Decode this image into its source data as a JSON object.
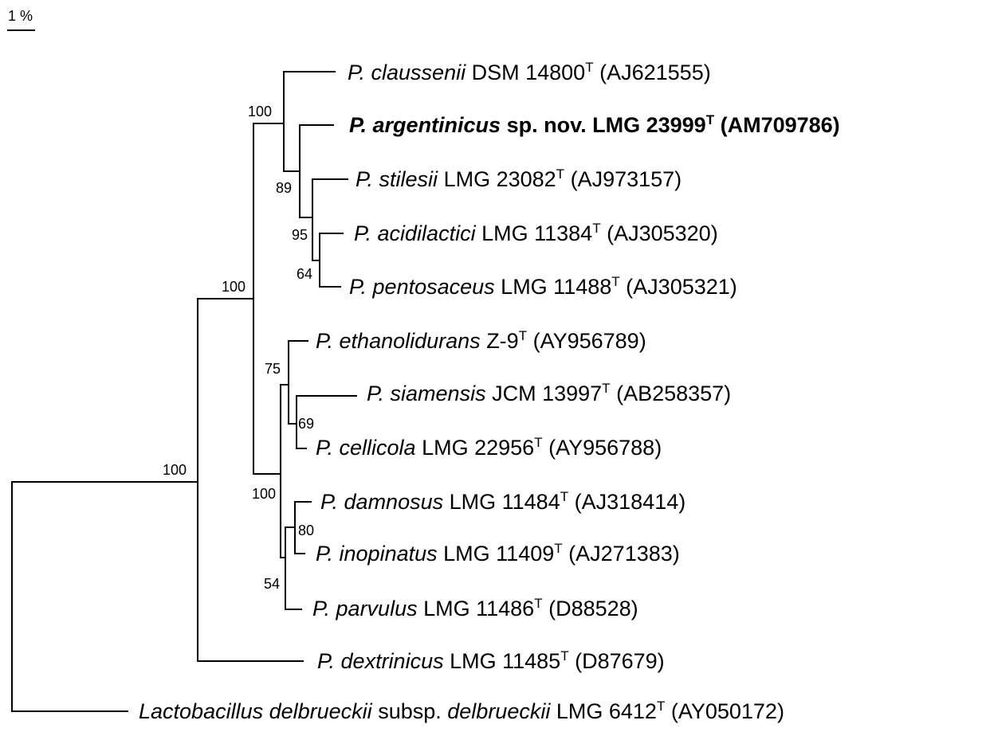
{
  "scale": {
    "label": "1 %"
  },
  "bootstrap": {
    "claussenii_clade": "100",
    "argentinicus_clade": "89",
    "acidilactici_clade": "95",
    "pentosaceus_pair": "64",
    "pediococcus_core": "100",
    "pediococcus_all": "100",
    "ethanolidurans_clade": "75",
    "siamensis_pair": "69",
    "lower_clade": "100",
    "damnosus_pair": "80",
    "parvulus_clade": "54"
  },
  "taxa": [
    {
      "id": "claussenii",
      "name": "P. claussenii",
      "strain": "DSM 14800",
      "type": "T",
      "accession": "(AJ621555)",
      "bold": false
    },
    {
      "id": "argentinicus",
      "name": "P. argentinicus",
      "strain": "sp. nov. LMG 23999",
      "type": "T",
      "accession": "(AM709786)",
      "bold": true
    },
    {
      "id": "stilesii",
      "name": "P. stilesii",
      "strain": "LMG 23082",
      "type": "T",
      "accession": "(AJ973157)",
      "bold": false
    },
    {
      "id": "acidilactici",
      "name": "P. acidilactici",
      "strain": "LMG 11384",
      "type": "T",
      "accession": "(AJ305320)",
      "bold": false
    },
    {
      "id": "pentosaceus",
      "name": "P. pentosaceus",
      "strain": "LMG 11488",
      "type": "T",
      "accession": "(AJ305321)",
      "bold": false
    },
    {
      "id": "ethanolidurans",
      "name": "P. ethanolidurans",
      "strain": "Z-9",
      "type": "T",
      "accession": "(AY956789)",
      "bold": false
    },
    {
      "id": "siamensis",
      "name": "P. siamensis",
      "strain": "JCM 13997",
      "type": "T",
      "accession": "(AB258357)",
      "bold": false
    },
    {
      "id": "cellicola",
      "name": "P. cellicola",
      "strain": "LMG 22956",
      "type": "T",
      "accession": "(AY956788)",
      "bold": false
    },
    {
      "id": "damnosus",
      "name": "P. damnosus",
      "strain": "LMG 11484",
      "type": "T",
      "accession": "(AJ318414)",
      "bold": false
    },
    {
      "id": "inopinatus",
      "name": "P. inopinatus",
      "strain": "LMG 11409",
      "type": "T",
      "accession": "(AJ271383)",
      "bold": false
    },
    {
      "id": "parvulus",
      "name": "P. parvulus",
      "strain": "LMG 11486",
      "type": "T",
      "accession": "(D88528)",
      "bold": false
    },
    {
      "id": "dextrinicus",
      "name": "P. dextrinicus",
      "strain": "LMG 11485",
      "type": "T",
      "accession": "(D87679)",
      "bold": false
    },
    {
      "id": "lactobacillus",
      "name": "Lactobacillus delbrueckii",
      "mid": "subsp.",
      "name2": "delbrueckii",
      "strain": "LMG 6412",
      "type": "T",
      "accession": "(AY050172)",
      "bold": false
    }
  ]
}
